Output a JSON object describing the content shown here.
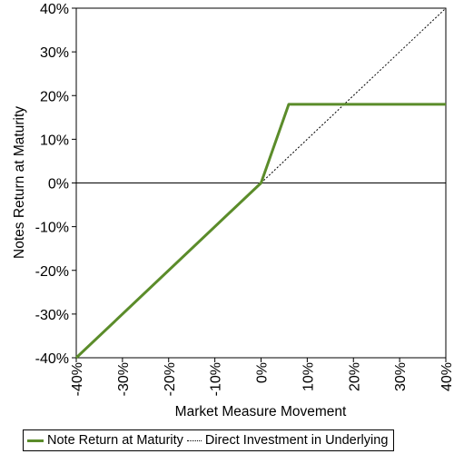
{
  "chart_data": {
    "type": "line",
    "xlabel": "Market Measure Movement",
    "ylabel": "Notes Return at Maturity",
    "xlim": [
      -40,
      40
    ],
    "ylim": [
      -40,
      40
    ],
    "x_ticks": [
      -40,
      -30,
      -20,
      -10,
      0,
      10,
      20,
      30,
      40
    ],
    "y_ticks": [
      -40,
      -30,
      -20,
      -10,
      0,
      10,
      20,
      30,
      40
    ],
    "x_tick_labels": [
      "-40%",
      "-30%",
      "-20%",
      "-10%",
      "0%",
      "10%",
      "20%",
      "30%",
      "40%"
    ],
    "y_tick_labels": [
      "-40%",
      "-30%",
      "-20%",
      "-10%",
      "0%",
      "10%",
      "20%",
      "30%",
      "40%"
    ],
    "grid": false,
    "legend_position": "bottom",
    "series": [
      {
        "name": "Note Return at Maturity",
        "color": "#5b8c2a",
        "style": "solid",
        "x": [
          -40,
          0,
          6,
          40
        ],
        "y": [
          -40,
          0,
          18,
          18
        ]
      },
      {
        "name": "Direct Investment in Underlying",
        "color": "#000000",
        "style": "dotted",
        "x": [
          0,
          40
        ],
        "y": [
          0,
          40
        ]
      }
    ]
  }
}
